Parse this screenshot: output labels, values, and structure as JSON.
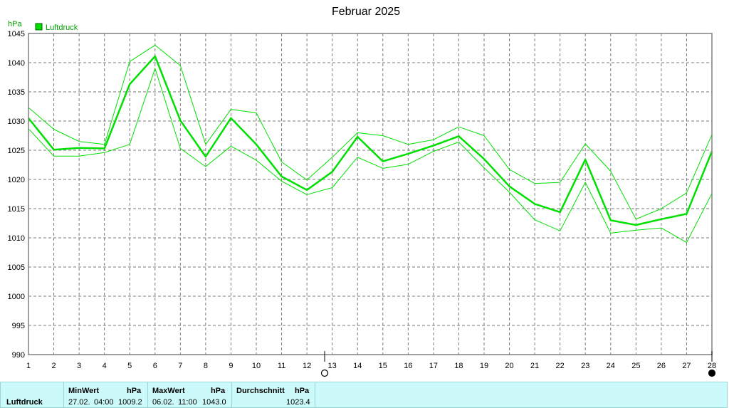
{
  "chart_data": {
    "type": "line",
    "title": "Februar 2025",
    "ylabel": "hPa",
    "legend": [
      "Luftdruck"
    ],
    "legend_position": "top-left",
    "grid": true,
    "ylim": [
      990,
      1045
    ],
    "y_ticks": [
      "990",
      "995",
      "1000",
      "1005",
      "1010",
      "1015",
      "1020",
      "1025",
      "1030",
      "1035",
      "1040",
      "1045"
    ],
    "x": [
      1,
      2,
      3,
      4,
      5,
      6,
      7,
      8,
      9,
      10,
      11,
      12,
      13,
      14,
      15,
      16,
      17,
      18,
      19,
      20,
      21,
      22,
      23,
      24,
      25,
      26,
      27,
      28
    ],
    "x_ticks": [
      "1",
      "2",
      "3",
      "4",
      "5",
      "6",
      "7",
      "8",
      "9",
      "10",
      "11",
      "12",
      "13",
      "14",
      "15",
      "16",
      "17",
      "18",
      "19",
      "20",
      "21",
      "22",
      "23",
      "24",
      "25",
      "26",
      "27",
      "28"
    ],
    "series": [
      {
        "name": "Luftdruck",
        "role": "max",
        "values": [
          1032.3,
          1028.6,
          1026.5,
          1026.0,
          1040.2,
          1043.0,
          1039.5,
          1026.0,
          1032.0,
          1031.4,
          1023.0,
          1019.9,
          1023.8,
          1028.0,
          1027.5,
          1026.0,
          1026.8,
          1029.0,
          1027.5,
          1021.7,
          1019.3,
          1019.5,
          1026.1,
          1021.4,
          1013.2,
          1015.0,
          1017.7,
          1027.7
        ]
      },
      {
        "name": "Luftdruck",
        "role": "avg",
        "values": [
          1030.5,
          1025.1,
          1025.4,
          1025.3,
          1036.3,
          1041.1,
          1030.1,
          1023.9,
          1030.5,
          1026.0,
          1020.5,
          1018.2,
          1021.3,
          1027.3,
          1023.1,
          1024.4,
          1025.8,
          1027.4,
          1023.5,
          1018.8,
          1015.8,
          1014.4,
          1023.4,
          1013.0,
          1012.2,
          1013.2,
          1014.1,
          1024.8
        ]
      },
      {
        "name": "Luftdruck",
        "role": "min",
        "values": [
          1028.7,
          1024.0,
          1024.0,
          1024.6,
          1026.0,
          1039.0,
          1025.3,
          1022.2,
          1025.7,
          1023.3,
          1019.7,
          1017.4,
          1018.6,
          1023.8,
          1021.9,
          1022.6,
          1024.8,
          1026.4,
          1022.0,
          1017.8,
          1013.1,
          1011.2,
          1019.5,
          1010.8,
          1011.3,
          1011.7,
          1009.2,
          1017.6
        ]
      }
    ],
    "moon_phases": [
      {
        "day": 12.7,
        "phase": "full-moon"
      },
      {
        "day": 28,
        "phase": "new-moon"
      }
    ],
    "colors": {
      "series": "#00e000",
      "legend_fill": "#00e000",
      "unit": "#00a000",
      "grid": "#7a7a7a",
      "frame": "#808080"
    }
  },
  "stats": {
    "row_label": "Luftdruck",
    "min": {
      "header": "MinWert",
      "unit": "hPa",
      "date": "27.02.",
      "time": "04:00",
      "value": "1009.2"
    },
    "max": {
      "header": "MaxWert",
      "unit": "hPa",
      "date": "06.02.",
      "time": "11:00",
      "value": "1043.0"
    },
    "avg": {
      "header": "Durchschnitt",
      "unit": "hPa",
      "value": "1023.4"
    }
  }
}
